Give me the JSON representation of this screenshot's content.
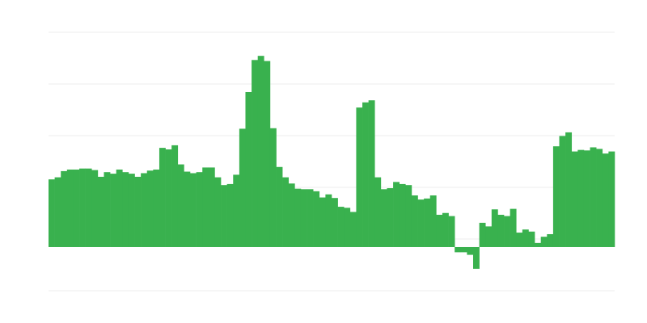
{
  "chart_data": {
    "type": "bar",
    "title": "",
    "xlabel": "",
    "ylabel": "",
    "ylim": [
      -8.44,
      41.56
    ],
    "grid": true,
    "gridlines": [
      -8.44,
      1.56,
      11.56,
      21.56,
      31.56,
      41.56
    ],
    "legend": "none",
    "bar_color": "#39b14e",
    "grid_color": "#eeeeee",
    "values": [
      13.1,
      13.5,
      14.7,
      15.0,
      15.0,
      15.2,
      15.2,
      14.9,
      13.6,
      14.5,
      14.2,
      15.0,
      14.5,
      14.2,
      13.6,
      14.3,
      14.8,
      15.0,
      19.2,
      18.9,
      19.7,
      16.0,
      14.6,
      14.3,
      14.5,
      15.4,
      15.4,
      13.5,
      12.0,
      12.2,
      14.0,
      22.9,
      30.0,
      36.2,
      37.0,
      36.0,
      23.0,
      15.5,
      13.5,
      12.3,
      11.3,
      11.2,
      11.2,
      10.8,
      9.6,
      10.2,
      9.5,
      7.8,
      7.6,
      6.8,
      27.0,
      28.0,
      28.4,
      13.5,
      11.2,
      11.4,
      12.6,
      12.2,
      12.0,
      10.0,
      9.2,
      9.4,
      10.0,
      6.25,
      6.6,
      6.0,
      -1.0,
      -1.0,
      -1.5,
      -4.2,
      4.7,
      4.0,
      7.3,
      6.25,
      6.0,
      7.4,
      2.8,
      3.4,
      3.0,
      0.8,
      2.0,
      2.5,
      19.5,
      21.5,
      22.2,
      18.5,
      18.8,
      18.7,
      19.3,
      19.0,
      18.1,
      18.5
    ]
  }
}
